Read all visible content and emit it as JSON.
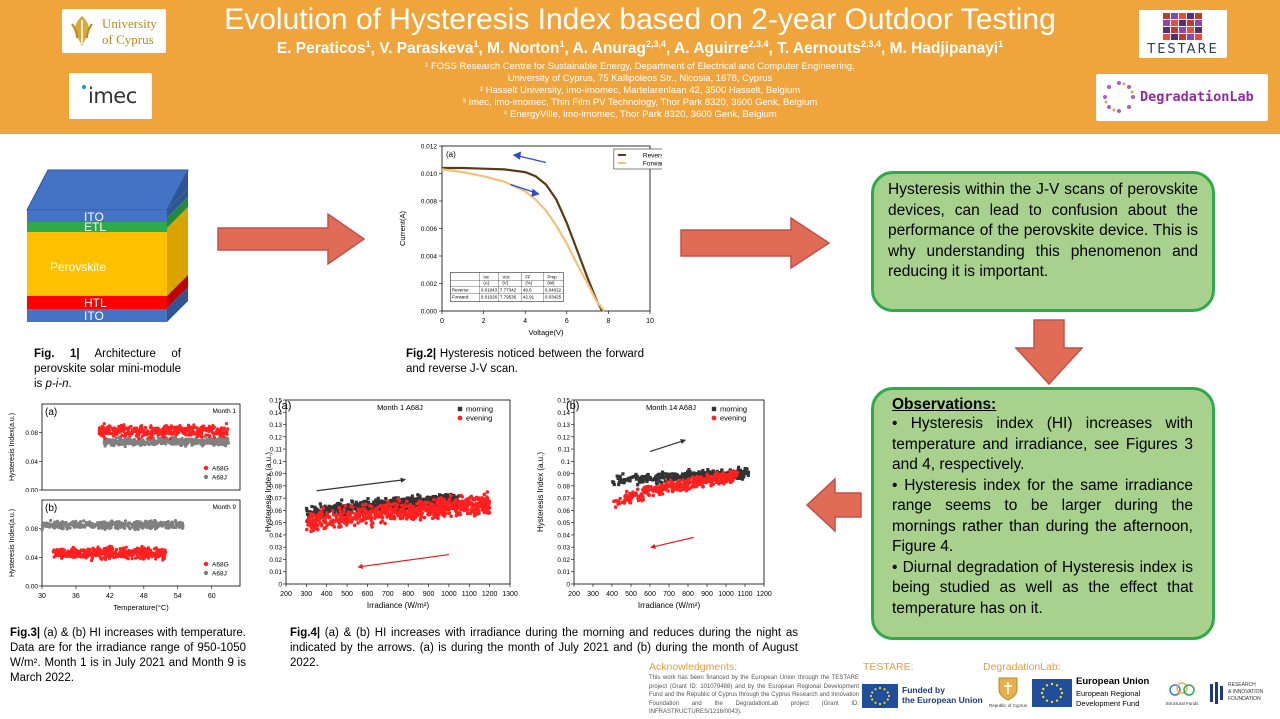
{
  "header": {
    "title": "Evolution of Hysteresis Index based on 2-year Outdoor Testing",
    "authors": [
      {
        "name": "E. Peraticos",
        "sup": "1"
      },
      {
        "name": "V. Paraskeva",
        "sup": "1"
      },
      {
        "name": "M. Norton",
        "sup": "1"
      },
      {
        "name": "A. Anurag",
        "sup": "2,3,4"
      },
      {
        "name": "A. Aguirre",
        "sup": "2,3,4"
      },
      {
        "name": "T. Aernouts",
        "sup": "2,3,4"
      },
      {
        "name": "M. Hadjipanayi",
        "sup": "1"
      }
    ],
    "affiliations": [
      "¹ FOSS Research Centre for Sustainable Energy, Department of Electrical and Computer Engineering,",
      "University of Cyprus, 75 Kallipoleos Str., Nicosia, 1678, Cyprus",
      "² Hasselt University, imo-imomec, Martelarenlaan 42, 3500 Hasselt, Belgium",
      "³ Imec, imo-imomec, Thin Film PV Technology, Thor Park 8320, 3600 Genk, Belgium",
      "⁴ EnergyVille, imo-imomec, Thor Park 8320, 3600 Genk, Belgium"
    ],
    "logos": {
      "ucy_line1": "University",
      "ucy_line2": "of Cyprus",
      "imec": "imec",
      "testare": "TESTARE",
      "degradationlab": "DegradationLab"
    }
  },
  "architecture": {
    "layers": [
      "ITO",
      "ETL",
      "Perovskite",
      "HTL",
      "ITO"
    ],
    "colors": {
      "ito": "#4472c4",
      "etl": "#2eaa4a",
      "perovskite": "#ffc000",
      "htl": "#ff0000"
    }
  },
  "captions": {
    "fig1_label": "Fig. 1|",
    "fig1_text": " Architecture of perovskite solar mini-module is ",
    "fig1_italic": "p-i-n",
    "fig1_end": ".",
    "fig2_label": "Fig.2|",
    "fig2_text": " Hysteresis noticed between the forward and reverse J-V scan.",
    "fig3_label": "Fig.3|",
    "fig3_text": " (a) & (b) HI increases with temperature. Data are for the irradiance range of 950-1050 W/m². Month 1 is in July 2021 and Month 9 is March 2022.",
    "fig4_label": "Fig.4|",
    "fig4_text": " (a) & (b) HI increases with irradiance during the morning and reduces during the night as indicated by the arrows. (a) is during the month of July 2021 and (b) during the month of August 2022."
  },
  "intro_box": {
    "text": "Hysteresis within the J-V scans of perovskite devices, can lead to confusion about the performance of the perovskite device. This is why understanding this phenomenon and reducing it is important."
  },
  "observations": {
    "title": "Observations:",
    "bullets": [
      "• Hysteresis index (HI) increases with temperature and irradiance, see Figures 3 and 4, respectively.",
      "• Hysteresis index for the same irradiance range seems to be larger during the mornings rather than during the afternoon, Figure 4.",
      "• Diurnal degradation of Hysteresis index is being studied as well as the effect that temperature has on it."
    ]
  },
  "acknowledgments": {
    "title": "Acknowledgments:",
    "text": "This work has been financed by the European Union through the TESTARE project (Grant ID: 101079488) and by the European Regional Development Fund and the Republic of Cyprus through the Cyprus Research and Innovation Foundation and the DegradationLab project (Grant ID: INFRASTRUCTURES/1216/0043).",
    "testare_label": "TESTARE:",
    "degradationlab_label": "DegradationLab:",
    "eu_funded_line1": "Funded by",
    "eu_funded_line2": "the European Union",
    "republic_cyprus": "Republic of Cyprus",
    "eu_title": "European Union",
    "eu_line2": "European Regional",
    "eu_line3": "Development Fund",
    "structural_funds": "Structural Funds",
    "rif_line1": "RESEARCH",
    "rif_line2": "& INNOVATION",
    "rif_line3": "FOUNDATION"
  },
  "chart_data": [
    {
      "id": "fig2",
      "type": "line",
      "panel_label": "(a)",
      "xlabel": "Voltage(V)",
      "ylabel": "Current(A)",
      "xlim": [
        0,
        10
      ],
      "ylim": [
        0,
        0.012
      ],
      "xticks": [
        "0",
        "2",
        "4",
        "6",
        "8",
        "10"
      ],
      "yticks": [
        "0.000",
        "0.002",
        "0.004",
        "0.006",
        "0.008",
        "0.010",
        "0.012"
      ],
      "legend_position": "top-right",
      "series": [
        {
          "name": "Reverse",
          "color": "#5a3a10",
          "x": [
            0,
            1,
            2,
            3,
            4,
            4.5,
            5,
            5.5,
            6,
            6.5,
            7,
            7.4,
            7.7
          ],
          "y": [
            0.0104,
            0.0104,
            0.01035,
            0.0103,
            0.0101,
            0.0098,
            0.0092,
            0.0081,
            0.0064,
            0.0044,
            0.0024,
            0.0009,
            0.0
          ]
        },
        {
          "name": "Forward",
          "color": "#f2c27a",
          "x": [
            0,
            1,
            2,
            3,
            4,
            4.5,
            5,
            5.5,
            6,
            6.5,
            7,
            7.4,
            7.8
          ],
          "y": [
            0.0103,
            0.0101,
            0.0098,
            0.0094,
            0.0087,
            0.0081,
            0.0073,
            0.0062,
            0.0049,
            0.0034,
            0.002,
            0.0008,
            0.0
          ]
        }
      ],
      "table": {
        "headers": [
          "",
          "Isc",
          "Voc",
          "FF",
          "Pmp"
        ],
        "units": [
          "",
          "(A)",
          "(V)",
          "(%)",
          "(W)"
        ],
        "rows": [
          [
            "Reverse",
            "0.01043",
            "7.77342",
            "49.6",
            "0.04022"
          ],
          [
            "Forward",
            "0.01026",
            "7.79536",
            "42.91",
            "0.03425"
          ]
        ]
      }
    },
    {
      "id": "fig3a",
      "type": "scatter",
      "panel_label": "(a)",
      "title": "Month 1",
      "ylabel": "Hysteresis Index(a.u.)",
      "xlim": [
        30,
        65
      ],
      "ylim": [
        0,
        0.12
      ],
      "yticks": [
        "0.00",
        "0.04",
        "0.08"
      ],
      "legend_position": "bottom-right",
      "series": [
        {
          "name": "A68G",
          "color": "#ff2020",
          "x_range": [
            40,
            63
          ],
          "y_center": 0.082,
          "y_spread": 0.012
        },
        {
          "name": "A68J",
          "color": "#808080",
          "x_range": [
            41,
            63
          ],
          "y_center": 0.068,
          "y_spread": 0.008
        }
      ]
    },
    {
      "id": "fig3b",
      "type": "scatter",
      "panel_label": "(b)",
      "title": "Month 9",
      "xlabel": "Temperature(°C)",
      "ylabel": "Hysteresis Index(a.u.)",
      "xlim": [
        30,
        65
      ],
      "ylim": [
        0,
        0.12
      ],
      "xticks": [
        "30",
        "36",
        "42",
        "48",
        "54",
        "60"
      ],
      "yticks": [
        "0.00",
        "0.04",
        "0.08"
      ],
      "legend_position": "bottom-right",
      "series": [
        {
          "name": "A68G",
          "color": "#ff2020",
          "x_range": [
            32,
            52
          ],
          "y_center": 0.046,
          "y_spread": 0.012
        },
        {
          "name": "A68J",
          "color": "#808080",
          "x_range": [
            30,
            55
          ],
          "y_center": 0.085,
          "y_spread": 0.008
        }
      ]
    },
    {
      "id": "fig4a",
      "type": "scatter",
      "panel_label": "(a)",
      "title": "Month 1 A68J",
      "xlabel": "Irradiance (W/m²)",
      "ylabel": "Hysteresis Index (a.u.)",
      "xlim": [
        200,
        1300
      ],
      "ylim": [
        0,
        0.15
      ],
      "xticks": [
        "200",
        "300",
        "400",
        "500",
        "600",
        "700",
        "800",
        "900",
        "1000",
        "1100",
        "1200",
        "1300"
      ],
      "yticks": [
        "0",
        "0.01",
        "0.02",
        "0.03",
        "0.04",
        "0.05",
        "0.06",
        "0.07",
        "0.08",
        "0.09",
        "0.1",
        "0.11",
        "0.12",
        "0.13",
        "0.14",
        "0.15"
      ],
      "legend_position": "top-right",
      "series": [
        {
          "name": "morning",
          "color": "#333333",
          "x_range": [
            300,
            1050
          ],
          "y_start": 0.055,
          "y_end": 0.068,
          "y_spread": 0.008
        },
        {
          "name": "evening",
          "color": "#ff2020",
          "x_range": [
            300,
            1200
          ],
          "y_start": 0.045,
          "y_end": 0.065,
          "y_spread": 0.012
        }
      ],
      "arrows": [
        {
          "from": [
            350,
            0.076
          ],
          "to": [
            780,
            0.085
          ],
          "color": "#333333"
        },
        {
          "from": [
            1000,
            0.024
          ],
          "to": [
            560,
            0.014
          ],
          "color": "#e02020"
        }
      ]
    },
    {
      "id": "fig4b",
      "type": "scatter",
      "panel_label": "(b)",
      "title": "Month 14 A68J",
      "xlabel": "Irradiance (W/m²)",
      "ylabel": "Hysteresis Index (a.u.)",
      "xlim": [
        200,
        1200
      ],
      "ylim": [
        0,
        0.15
      ],
      "xticks": [
        "200",
        "300",
        "400",
        "500",
        "600",
        "700",
        "800",
        "900",
        "1000",
        "1100",
        "1200"
      ],
      "yticks": [
        "0",
        "0.01",
        "0.02",
        "0.03",
        "0.04",
        "0.05",
        "0.06",
        "0.07",
        "0.08",
        "0.09",
        "0.1",
        "0.11",
        "0.12",
        "0.13",
        "0.14",
        "0.15"
      ],
      "legend_position": "top-right",
      "series": [
        {
          "name": "morning",
          "color": "#333333",
          "x_range": [
            400,
            1120
          ],
          "y_start": 0.082,
          "y_end": 0.09,
          "y_spread": 0.006
        },
        {
          "name": "evening",
          "color": "#ff2020",
          "x_range": [
            400,
            1060
          ],
          "y_start": 0.06,
          "y_end": 0.088,
          "y_spread": 0.007
        }
      ],
      "arrows": [
        {
          "from": [
            600,
            0.108
          ],
          "to": [
            780,
            0.117
          ],
          "color": "#333333"
        },
        {
          "from": [
            830,
            0.038
          ],
          "to": [
            610,
            0.03
          ],
          "color": "#e02020"
        }
      ]
    }
  ]
}
